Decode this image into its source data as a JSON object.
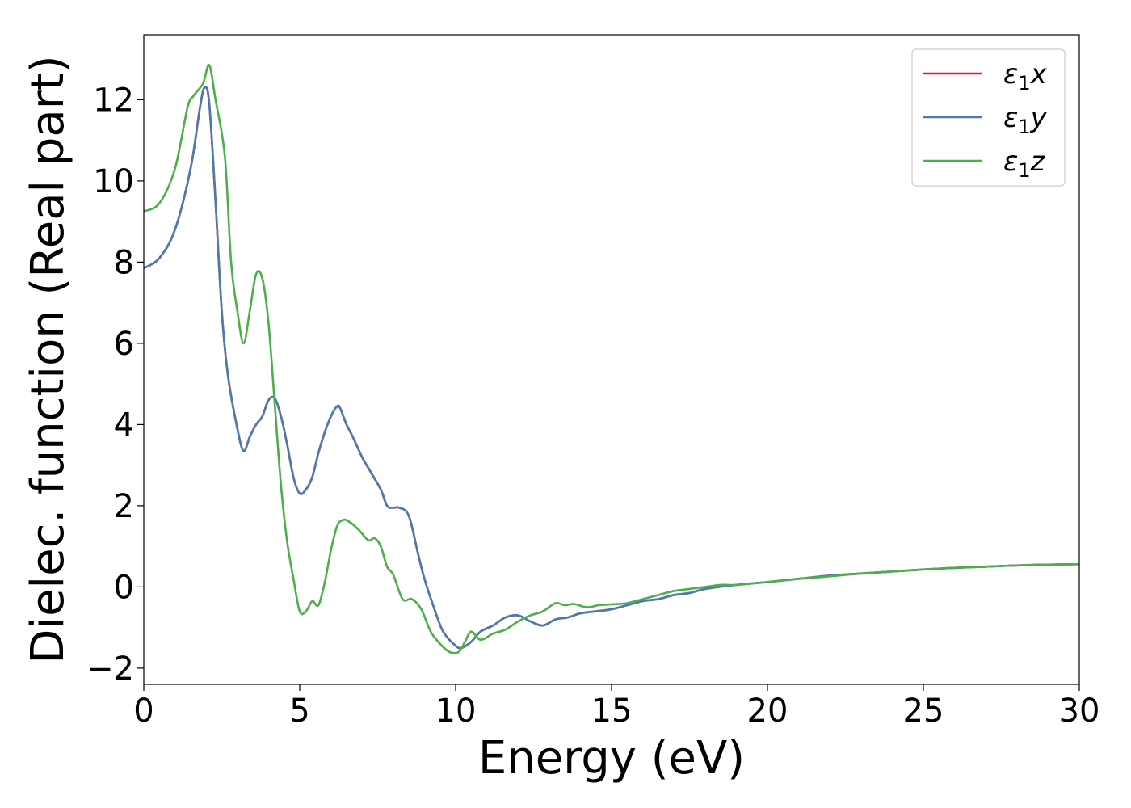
{
  "chart_data": {
    "type": "line",
    "title": "",
    "xlabel": "Energy (eV)",
    "ylabel": "Dielec. function (Real part)",
    "xlim": [
      0,
      30
    ],
    "ylim": [
      -2.4,
      13.6
    ],
    "xticks": [
      0,
      5,
      10,
      15,
      20,
      25,
      30
    ],
    "xtick_labels": [
      "0",
      "5",
      "10",
      "15",
      "20",
      "25",
      "30"
    ],
    "yticks": [
      -2,
      0,
      2,
      4,
      6,
      8,
      10,
      12
    ],
    "ytick_labels": [
      "−2",
      "0",
      "2",
      "4",
      "6",
      "8",
      "10",
      "12"
    ],
    "grid": false,
    "legend_position": "top-right",
    "series": [
      {
        "name": "ε₁x",
        "legend_base": "ε",
        "legend_sub": "1",
        "legend_tail": "x",
        "color": "#e41a1c",
        "x": [
          0,
          0.5,
          1.0,
          1.5,
          1.8,
          1.95,
          2.1,
          2.3,
          2.5,
          2.7,
          3.0,
          3.2,
          3.4,
          3.6,
          3.8,
          4.0,
          4.2,
          4.4,
          4.6,
          4.8,
          5.0,
          5.2,
          5.4,
          5.6,
          5.8,
          6.0,
          6.2,
          6.3,
          6.5,
          6.7,
          7.0,
          7.3,
          7.6,
          7.8,
          8.0,
          8.2,
          8.5,
          8.8,
          9.0,
          9.3,
          9.6,
          10.0,
          10.2,
          10.5,
          10.8,
          11.2,
          11.6,
          12.0,
          12.4,
          12.8,
          13.2,
          13.6,
          14.0,
          14.5,
          15.0,
          15.5,
          16.0,
          16.5,
          17.0,
          17.5,
          18.0,
          19.0,
          20.0,
          21.0,
          22.0,
          23.0,
          24.0,
          25.0,
          26.0,
          27.0,
          28.0,
          29.0,
          30.0
        ],
        "values": [
          7.85,
          8.1,
          8.8,
          10.3,
          11.8,
          12.3,
          11.9,
          9.5,
          6.8,
          5.2,
          3.9,
          3.35,
          3.7,
          4.0,
          4.2,
          4.6,
          4.65,
          4.2,
          3.5,
          2.7,
          2.3,
          2.4,
          2.7,
          3.3,
          3.8,
          4.2,
          4.45,
          4.4,
          4.0,
          3.7,
          3.2,
          2.8,
          2.4,
          2.0,
          1.95,
          1.95,
          1.75,
          0.8,
          0.2,
          -0.5,
          -1.1,
          -1.45,
          -1.5,
          -1.35,
          -1.1,
          -0.95,
          -0.75,
          -0.7,
          -0.85,
          -0.95,
          -0.8,
          -0.75,
          -0.65,
          -0.6,
          -0.55,
          -0.45,
          -0.35,
          -0.3,
          -0.2,
          -0.15,
          -0.05,
          0.05,
          0.12,
          0.2,
          0.28,
          0.33,
          0.38,
          0.43,
          0.47,
          0.5,
          0.53,
          0.55,
          0.56
        ]
      },
      {
        "name": "ε₁y",
        "legend_base": "ε",
        "legend_sub": "1",
        "legend_tail": "y",
        "color": "#4a7bb0",
        "x": [
          0,
          0.5,
          1.0,
          1.5,
          1.8,
          1.95,
          2.1,
          2.3,
          2.5,
          2.7,
          3.0,
          3.2,
          3.4,
          3.6,
          3.8,
          4.0,
          4.2,
          4.4,
          4.6,
          4.8,
          5.0,
          5.2,
          5.4,
          5.6,
          5.8,
          6.0,
          6.2,
          6.3,
          6.5,
          6.7,
          7.0,
          7.3,
          7.6,
          7.8,
          8.0,
          8.2,
          8.5,
          8.8,
          9.0,
          9.3,
          9.6,
          10.0,
          10.2,
          10.5,
          10.8,
          11.2,
          11.6,
          12.0,
          12.4,
          12.8,
          13.2,
          13.6,
          14.0,
          14.5,
          15.0,
          15.5,
          16.0,
          16.5,
          17.0,
          17.5,
          18.0,
          19.0,
          20.0,
          21.0,
          22.0,
          23.0,
          24.0,
          25.0,
          26.0,
          27.0,
          28.0,
          29.0,
          30.0
        ],
        "values": [
          7.85,
          8.1,
          8.8,
          10.3,
          11.8,
          12.3,
          11.9,
          9.5,
          6.8,
          5.2,
          3.9,
          3.35,
          3.7,
          4.0,
          4.2,
          4.6,
          4.65,
          4.2,
          3.5,
          2.7,
          2.3,
          2.4,
          2.7,
          3.3,
          3.8,
          4.2,
          4.45,
          4.4,
          4.0,
          3.7,
          3.2,
          2.8,
          2.4,
          2.0,
          1.95,
          1.95,
          1.75,
          0.8,
          0.2,
          -0.5,
          -1.1,
          -1.45,
          -1.5,
          -1.35,
          -1.1,
          -0.95,
          -0.75,
          -0.7,
          -0.85,
          -0.95,
          -0.8,
          -0.75,
          -0.65,
          -0.6,
          -0.55,
          -0.45,
          -0.35,
          -0.3,
          -0.2,
          -0.15,
          -0.05,
          0.05,
          0.12,
          0.2,
          0.28,
          0.33,
          0.38,
          0.43,
          0.47,
          0.5,
          0.53,
          0.55,
          0.56
        ]
      },
      {
        "name": "ε₁z",
        "legend_base": "ε",
        "legend_sub": "1",
        "legend_tail": "z",
        "color": "#4daf4a",
        "x": [
          0,
          0.5,
          1.0,
          1.4,
          1.6,
          1.9,
          2.1,
          2.3,
          2.6,
          2.8,
          3.0,
          3.2,
          3.4,
          3.6,
          3.8,
          4.0,
          4.2,
          4.4,
          4.6,
          4.8,
          5.0,
          5.2,
          5.4,
          5.6,
          5.8,
          6.0,
          6.2,
          6.4,
          6.6,
          6.9,
          7.2,
          7.4,
          7.6,
          7.8,
          8.0,
          8.3,
          8.6,
          8.9,
          9.2,
          9.5,
          9.8,
          10.1,
          10.3,
          10.5,
          10.8,
          11.2,
          11.6,
          12.0,
          12.4,
          12.8,
          13.2,
          13.5,
          13.8,
          14.2,
          14.6,
          15.0,
          15.5,
          16.0,
          16.5,
          17.0,
          17.5,
          18.0,
          18.5,
          19.0,
          20.0,
          21.0,
          22.0,
          23.0,
          24.0,
          25.0,
          26.0,
          27.0,
          28.0,
          29.0,
          30.0
        ],
        "values": [
          9.25,
          9.45,
          10.3,
          11.8,
          12.1,
          12.4,
          12.85,
          12.0,
          10.6,
          8.0,
          6.8,
          6.0,
          6.8,
          7.7,
          7.6,
          6.5,
          4.5,
          2.5,
          1.1,
          0.2,
          -0.6,
          -0.6,
          -0.35,
          -0.45,
          0.1,
          0.9,
          1.5,
          1.65,
          1.6,
          1.4,
          1.15,
          1.2,
          1.0,
          0.5,
          0.3,
          -0.3,
          -0.3,
          -0.55,
          -1.1,
          -1.4,
          -1.6,
          -1.6,
          -1.35,
          -1.1,
          -1.3,
          -1.15,
          -1.05,
          -0.85,
          -0.7,
          -0.6,
          -0.4,
          -0.45,
          -0.42,
          -0.5,
          -0.45,
          -0.43,
          -0.4,
          -0.3,
          -0.2,
          -0.1,
          -0.05,
          0.0,
          0.05,
          0.05,
          0.12,
          0.2,
          0.26,
          0.33,
          0.38,
          0.43,
          0.47,
          0.5,
          0.53,
          0.55,
          0.56
        ]
      }
    ]
  }
}
